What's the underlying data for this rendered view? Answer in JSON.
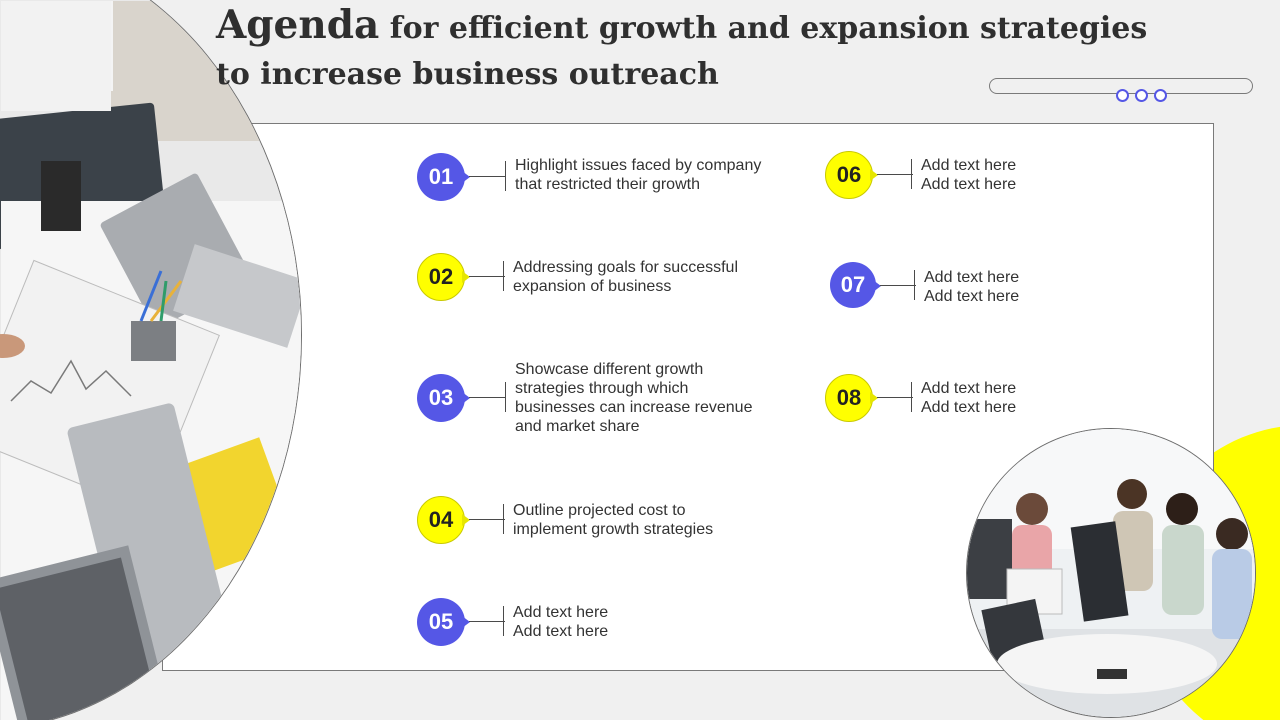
{
  "slide": {
    "title_first_word": "Agenda",
    "title_rest": "for efficient growth and expansion strategies to increase business outreach"
  },
  "colors": {
    "accent_purple": "#5557e6",
    "accent_yellow": "#ffff00",
    "title_text": "#2f2f2f"
  },
  "agenda": {
    "items": [
      {
        "number": "01",
        "color": "purple",
        "lines": [
          "Highlight issues faced by company",
          "that restricted their growth"
        ]
      },
      {
        "number": "02",
        "color": "yellow",
        "lines": [
          "Addressing goals for successful",
          "expansion of business"
        ]
      },
      {
        "number": "03",
        "color": "purple",
        "lines": [
          "Showcase different growth",
          "strategies through which",
          "businesses can increase revenue",
          "and market share"
        ]
      },
      {
        "number": "04",
        "color": "yellow",
        "lines": [
          "Outline projected cost to",
          "implement growth strategies"
        ]
      },
      {
        "number": "05",
        "color": "purple",
        "lines": [
          "Add text here",
          "Add text here"
        ]
      },
      {
        "number": "06",
        "color": "yellow",
        "lines": [
          "Add text here",
          "Add text here"
        ]
      },
      {
        "number": "07",
        "color": "purple",
        "lines": [
          "Add text here",
          "Add text here"
        ]
      },
      {
        "number": "08",
        "color": "yellow",
        "lines": [
          "Add text here",
          "Add text here"
        ]
      }
    ]
  },
  "images": {
    "left_photo": "office-desk-laptops-photo",
    "right_photo": "team-meeting-computers-photo"
  }
}
